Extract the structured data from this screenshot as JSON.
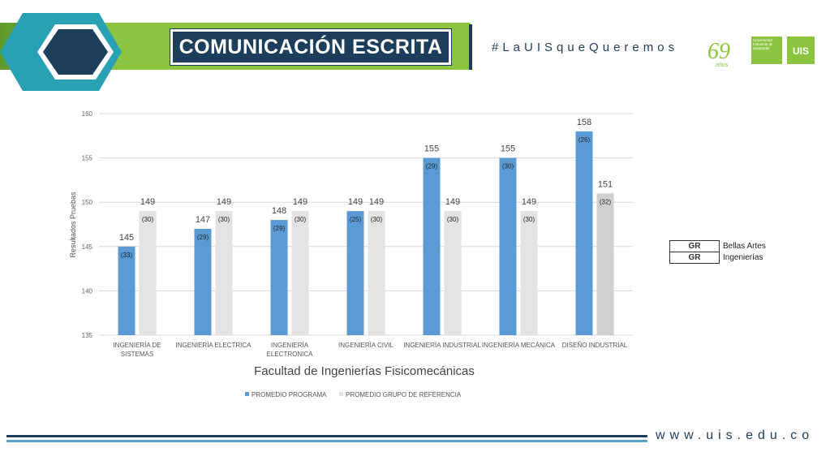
{
  "header": {
    "title": "COMUNICACIÓN ESCRITA",
    "hashtag": "#LaUISqueQueremos",
    "logo_69_text": "69",
    "logo_69_sub": "años",
    "logo_university_text": "Universidad Industrial de Santander",
    "logo_uis_text": "UIS"
  },
  "legend_table": {
    "rows": [
      {
        "code": "GR",
        "name": "Bellas Artes"
      },
      {
        "code": "GR",
        "name": "Ingenierías"
      }
    ]
  },
  "footer": {
    "url": "www.uis.edu.co"
  },
  "colors": {
    "brand_green": "#8bc53f",
    "brand_navy": "#1d3e5a",
    "program_bar": "#5b9bd5",
    "reference_bar": "#e3e3e3",
    "reference_bar_highlight": "#d0d0d0"
  },
  "chart_data": {
    "type": "bar",
    "title": "Facultad de Ingenierías Fisicomecánicas",
    "xlabel": "",
    "ylabel": "Resultados Pruebas",
    "ylim": [
      135,
      160
    ],
    "yticks": [
      135,
      140,
      145,
      150,
      155,
      160
    ],
    "grid": true,
    "legend_position": "bottom",
    "categories": [
      [
        "INGENIERÍA DE",
        "SISTEMAS"
      ],
      [
        "INGENIERÍA ELECTRICA"
      ],
      [
        "INGENIERÍA",
        "ELECTRONICA"
      ],
      [
        "INGENIERÍA CIVIL"
      ],
      [
        "INGENIERÍA INDUSTRIAL"
      ],
      [
        "INGENIERÍA MECÁNICA"
      ],
      [
        "DISEÑO INDUSTRIAL"
      ]
    ],
    "series": [
      {
        "name": "PROMEDIO PROGRAMA",
        "values": [
          145,
          147,
          148,
          149,
          155,
          155,
          158
        ],
        "counts": [
          "(33)",
          "(29)",
          "(29)",
          "(25)",
          "(29)",
          "(30)",
          "(26)"
        ]
      },
      {
        "name": "PROMEDIO GRUPO DE REFERENCIA",
        "values": [
          149,
          149,
          149,
          149,
          149,
          149,
          151
        ],
        "counts": [
          "(30)",
          "(30)",
          "(30)",
          "(30)",
          "(30)",
          "(30)",
          "(32)"
        ]
      }
    ]
  }
}
